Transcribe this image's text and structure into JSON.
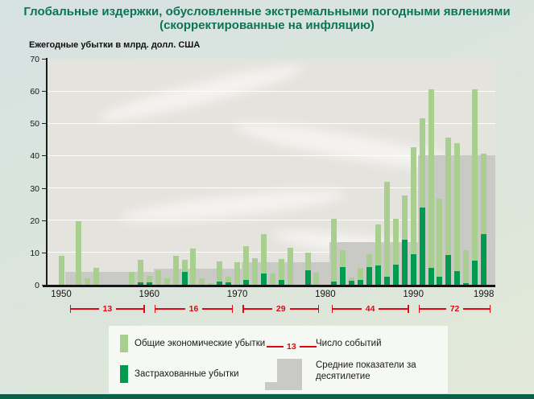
{
  "title": {
    "line1": "Глобальные издержки, обусловленные экстремальными погодными явлениями",
    "line2": "(скорректированные на инфляцию)"
  },
  "axis": {
    "y_label": "Ежегодные убытки в млрд. долл. США",
    "y_ticks": [
      0,
      10,
      20,
      30,
      40,
      50,
      60,
      70
    ],
    "x_tick_years": [
      1950,
      1960,
      1970,
      1980,
      1990,
      1998
    ]
  },
  "chart_data": {
    "type": "bar",
    "title": "Глобальные издержки, обусловленные экстремальными погодными явлениями (скорректированные на инфляцию)",
    "xlabel": "",
    "ylabel": "Ежегодные убытки в млрд. долл. США",
    "ylim": [
      0,
      70
    ],
    "grid": true,
    "legend_position": "bottom",
    "x": [
      1950,
      1951,
      1952,
      1953,
      1954,
      1955,
      1956,
      1957,
      1958,
      1959,
      1960,
      1961,
      1962,
      1963,
      1964,
      1965,
      1966,
      1967,
      1968,
      1969,
      1970,
      1971,
      1972,
      1973,
      1974,
      1975,
      1976,
      1977,
      1978,
      1979,
      1980,
      1981,
      1982,
      1983,
      1984,
      1985,
      1986,
      1987,
      1988,
      1989,
      1990,
      1991,
      1992,
      1993,
      1994,
      1995,
      1996,
      1997,
      1998
    ],
    "series": [
      {
        "name": "Общие экономические убытки",
        "color": "#a8cf90",
        "values": [
          9,
          0,
          19.8,
          2,
          5.2,
          0,
          0,
          0,
          4,
          7.8,
          2.8,
          4.5,
          2,
          9,
          7.8,
          11.3,
          2,
          0.6,
          7.3,
          2.5,
          7,
          12,
          8.2,
          15.8,
          3.6,
          7.9,
          11.5,
          0,
          10,
          3.7,
          0,
          20.4,
          10.6,
          2.3,
          5.2,
          9.5,
          18.8,
          31.9,
          20.4,
          27.7,
          42.5,
          51.5,
          60.5,
          26.7,
          45.7,
          43.8,
          10.8,
          60.5,
          40.5
        ]
      },
      {
        "name": "Застрахованные убытки",
        "color": "#019a4e",
        "values": [
          0,
          0,
          0,
          0,
          0,
          0,
          0,
          0,
          0,
          0.7,
          0.7,
          0,
          0,
          0,
          3.9,
          0,
          0,
          0,
          1,
          0.8,
          0,
          1.5,
          0,
          3.6,
          0,
          1.5,
          0,
          0,
          4.4,
          0,
          0,
          1,
          5.4,
          1.2,
          1.5,
          5.6,
          6,
          2.5,
          6.3,
          14,
          9.5,
          24,
          5.3,
          2.5,
          9.2,
          4.2,
          0.5,
          7.5,
          15.8
        ]
      }
    ],
    "decade_averages": {
      "label": "Средние показатели за десятилетие",
      "color": "#c9c9c6",
      "values": [
        {
          "decade": "1950s",
          "year_start": 1950.5,
          "year_end": 1960.5,
          "value": 3.9
        },
        {
          "decade": "1960s",
          "year_start": 1960.5,
          "year_end": 1970.5,
          "value": 4.9
        },
        {
          "decade": "1970s",
          "year_start": 1970.5,
          "year_end": 1980.5,
          "value": 7.1
        },
        {
          "decade": "1980s",
          "year_start": 1980.5,
          "year_end": 1990.5,
          "value": 13.1
        },
        {
          "decade": "1990s",
          "year_start": 1990.5,
          "year_end": 1999.3,
          "value": 40
        }
      ]
    },
    "event_counts": {
      "label": "Число событий",
      "color": "#e30613",
      "values": [
        {
          "decade": "1950s",
          "count": "13",
          "year_start": 1951.0,
          "year_end": 1959.5
        },
        {
          "decade": "1960s",
          "count": "16",
          "year_start": 1960.6,
          "year_end": 1969.5
        },
        {
          "decade": "1970s",
          "count": "29",
          "year_start": 1970.6,
          "year_end": 1979.3
        },
        {
          "decade": "1980s",
          "count": "44",
          "year_start": 1980.7,
          "year_end": 1989.5
        },
        {
          "decade": "1990s",
          "count": "72",
          "year_start": 1990.6,
          "year_end": 1998.8
        }
      ]
    }
  },
  "legend": {
    "total_label": "Общие экономические убытки",
    "insured_label": "Застрахованные убытки",
    "events_number": "13",
    "events_label": "Число событий",
    "average_label_line1": "Средние показатели за",
    "average_label_line2": "десятилетие"
  },
  "colors": {
    "total_bar": "#a8cf90",
    "insured_bar": "#019a4e",
    "decade_block": "#c9c9c6",
    "events_red": "#e30613",
    "title_green": "#0b7457",
    "bottom_strip": "#0d5f4a"
  }
}
